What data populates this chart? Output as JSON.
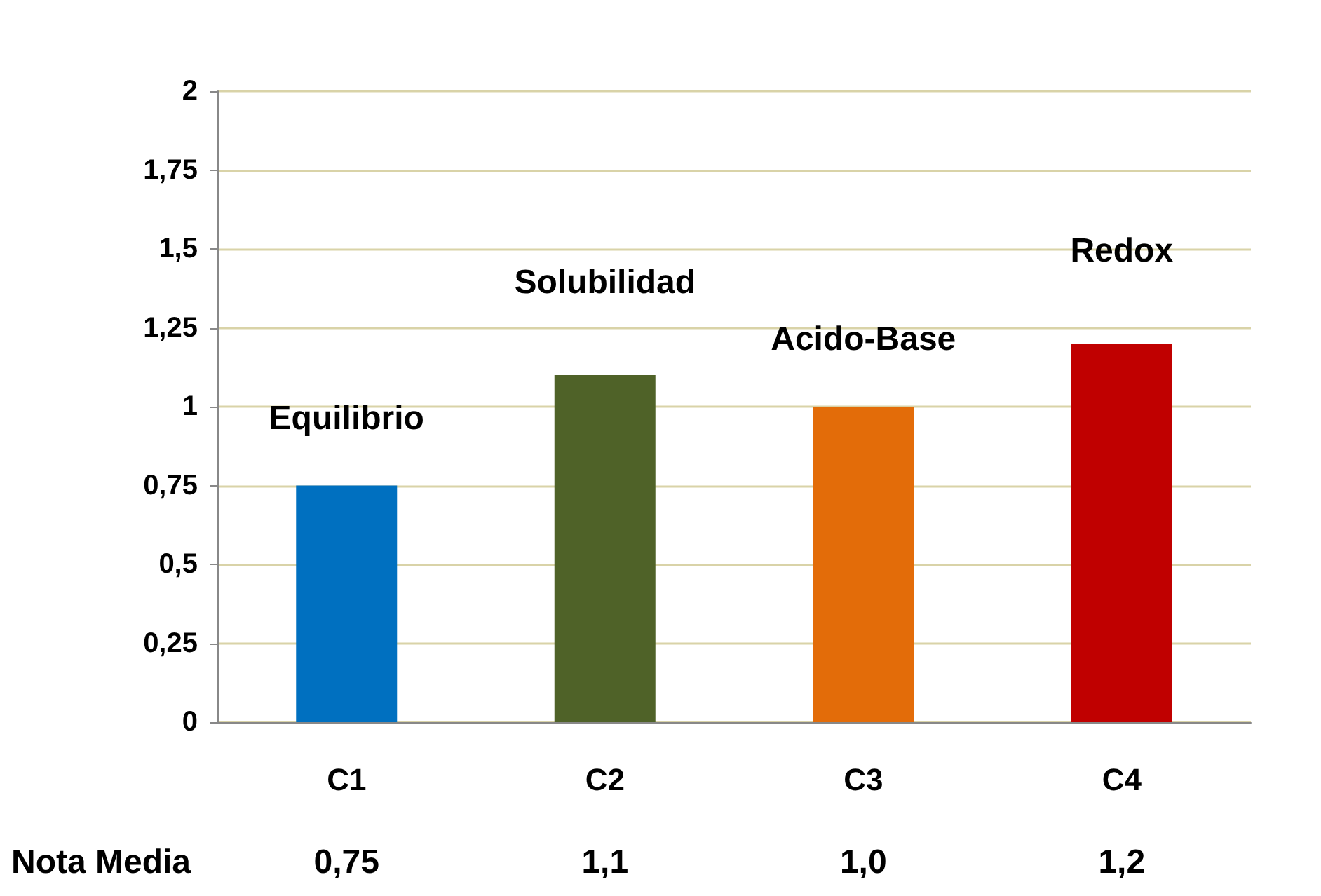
{
  "chart_data": {
    "type": "bar",
    "categories": [
      "C1",
      "C2",
      "C3",
      "C4"
    ],
    "series": [
      {
        "name": "Nota Media",
        "values": [
          0.75,
          1.1,
          1.0,
          1.2
        ],
        "colors": [
          "#0070c0",
          "#4f6228",
          "#e36c09",
          "#c00000"
        ],
        "value_labels": [
          "0,75",
          "1,1",
          "1,0",
          "1,2"
        ]
      }
    ],
    "ylim": [
      0,
      2
    ],
    "yticks": [
      0,
      {
        "value": 0.25,
        "label": "0,25"
      },
      {
        "value": 0.5,
        "label": "0,5"
      },
      {
        "value": 0.75,
        "label": "0,75"
      },
      1,
      {
        "value": 1.25,
        "label": "1,25"
      },
      {
        "value": 1.5,
        "label": "1,5"
      },
      {
        "value": 1.75,
        "label": "1,75"
      },
      2
    ],
    "grid": "y",
    "legend": false,
    "annotations": [
      "Equilibrio",
      "Solubilidad",
      "Acido-Base",
      "Redox"
    ]
  }
}
